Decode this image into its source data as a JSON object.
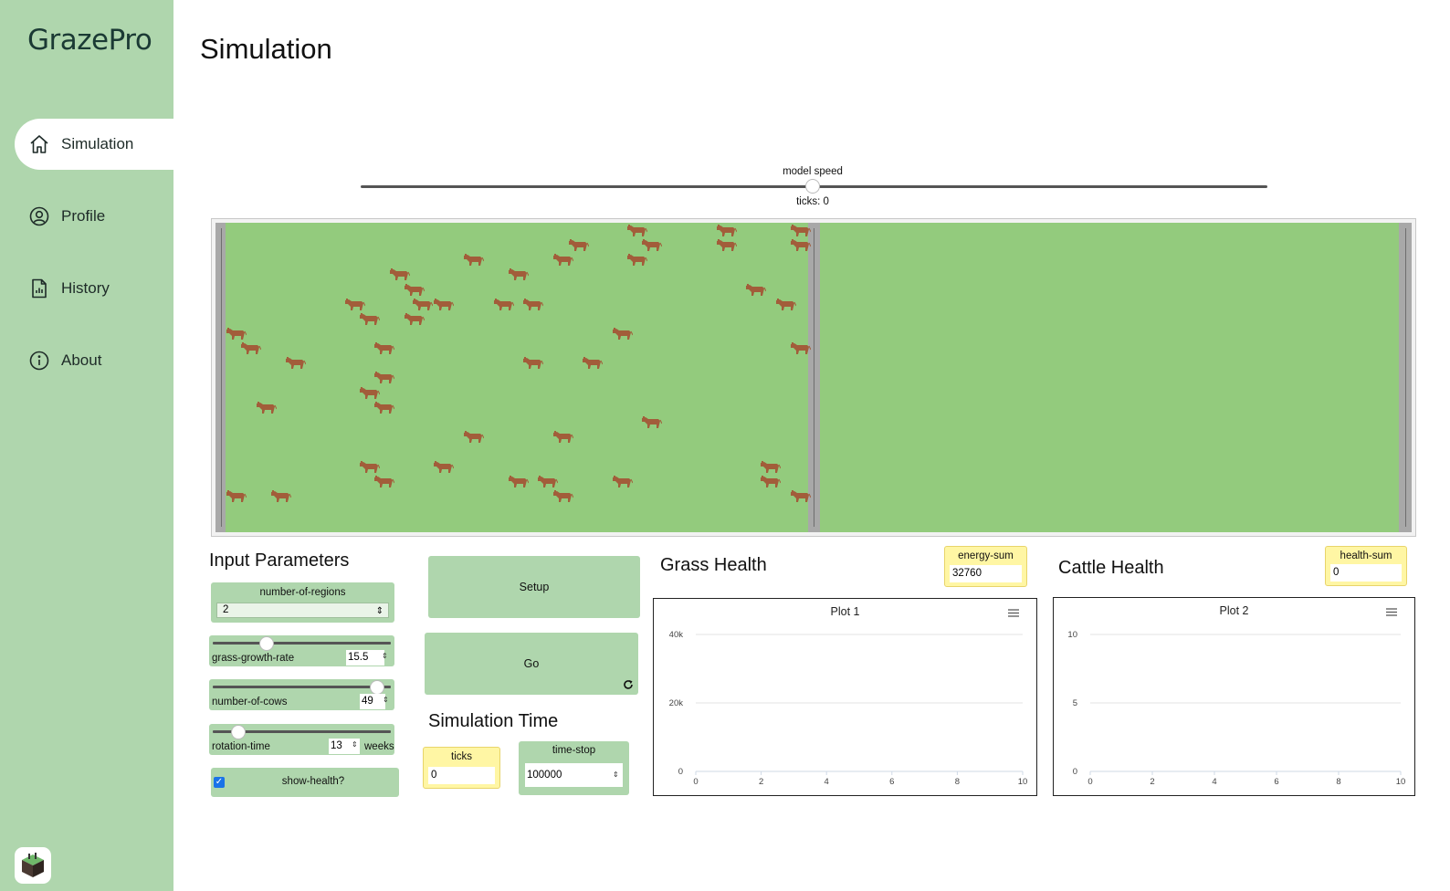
{
  "app": {
    "name": "GrazePro"
  },
  "sidebar": {
    "items": [
      {
        "label": "Simulation",
        "icon": "home-icon",
        "active": true
      },
      {
        "label": "Profile",
        "icon": "user-circle-icon",
        "active": false
      },
      {
        "label": "History",
        "icon": "document-icon",
        "active": false
      },
      {
        "label": "About",
        "icon": "info-icon",
        "active": false
      }
    ]
  },
  "page": {
    "title": "Simulation"
  },
  "speed": {
    "label": "model speed",
    "value_fraction": 0.5,
    "ticks_text": "ticks: 0"
  },
  "world": {
    "field_color": "#93cb7d",
    "cow_color": "#a25d3a",
    "regions": 2
  },
  "inputs": {
    "title": "Input Parameters",
    "number_of_regions": {
      "label": "number-of-regions",
      "value": "2"
    },
    "grass_growth_rate": {
      "label": "grass-growth-rate",
      "value": "15.5",
      "fraction": 0.31
    },
    "number_of_cows": {
      "label": "number-of-cows",
      "value": "49",
      "fraction": 0.92
    },
    "rotation_time": {
      "label": "rotation-time",
      "value": "13",
      "unit": "weeks",
      "fraction": 0.16
    },
    "show_health": {
      "label": "show-health?",
      "checked": true
    }
  },
  "buttons": {
    "setup": "Setup",
    "go": "Go"
  },
  "sim_time": {
    "title": "Simulation Time",
    "ticks": {
      "label": "ticks",
      "value": "0"
    },
    "time_stop": {
      "label": "time-stop",
      "value": "100000"
    }
  },
  "grass": {
    "title": "Grass Health",
    "monitor_label": "energy-sum",
    "monitor_value": "32760"
  },
  "cattle": {
    "title": "Cattle Health",
    "monitor_label": "health-sum",
    "monitor_value": "0"
  },
  "chart_data": [
    {
      "type": "line",
      "title": "Plot 1",
      "xlim": [
        0,
        10
      ],
      "ylim": [
        0,
        40000
      ],
      "x_ticks": [
        "0",
        "2",
        "4",
        "6",
        "8",
        "10"
      ],
      "y_ticks": [
        "0",
        "20k",
        "40k"
      ],
      "series": [],
      "grid": true
    },
    {
      "type": "line",
      "title": "Plot 2",
      "xlim": [
        0,
        10
      ],
      "ylim": [
        0,
        10
      ],
      "x_ticks": [
        "0",
        "2",
        "4",
        "6",
        "8",
        "10"
      ],
      "y_ticks": [
        "0",
        "5",
        "10"
      ],
      "series": [],
      "grid": true
    }
  ],
  "colors": {
    "sidebar": "#afd6ad",
    "widget": "#afd6ad",
    "monitor": "#fff6a4"
  }
}
